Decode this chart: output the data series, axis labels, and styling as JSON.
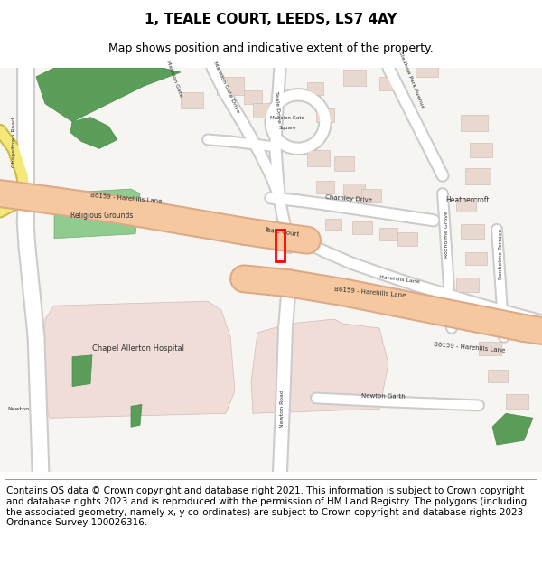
{
  "title": "1, TEALE COURT, LEEDS, LS7 4AY",
  "subtitle": "Map shows position and indicative extent of the property.",
  "footer": "Contains OS data © Crown copyright and database right 2021. This information is subject to Crown copyright and database rights 2023 and is reproduced with the permission of HM Land Registry. The polygons (including the associated geometry, namely x, y co-ordinates) are subject to Crown copyright and database rights 2023 Ordnance Survey 100026316.",
  "road_major_color": "#f5c8a0",
  "road_major_edge": "#ddaa88",
  "road_minor_color": "#ffffff",
  "road_minor_edge": "#cccccc",
  "green_dark": "#5a9e5a",
  "green_dark_edge": "#4a8a4a",
  "green_light": "#90cc90",
  "green_light_edge": "#70aa70",
  "building_color": "#e8d8d0",
  "building_ec": "#c8b8b0",
  "pink_area": "#f0ddd8",
  "pink_area_ec": "#d0bcb8",
  "plot_color": "#ff0000",
  "yellow_road": "#f5e87a",
  "yellow_road_edge": "#ccbb44",
  "title_fontsize": 11,
  "subtitle_fontsize": 9,
  "footer_fontsize": 7.5,
  "label_color": "#333333"
}
